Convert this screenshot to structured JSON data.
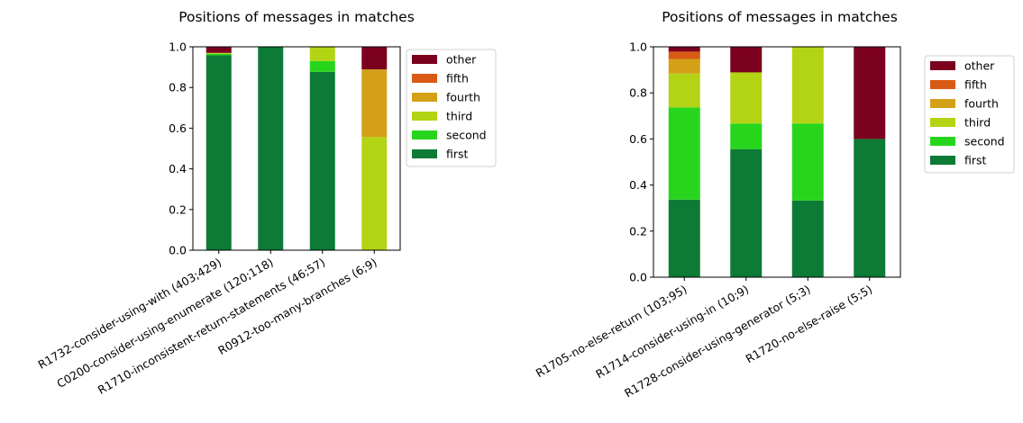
{
  "chart_data": [
    {
      "type": "bar",
      "stacked": true,
      "title": "Positions of messages in matches",
      "xlabel": "",
      "ylabel": "",
      "ylim": [
        0,
        1
      ],
      "yticks": [
        "0.0",
        "0.2",
        "0.4",
        "0.6",
        "0.8",
        "1.0"
      ],
      "legend_position": "outside-right",
      "categories": [
        "R1732-consider-using-with (403;429)",
        "C0200-consider-using-enumerate (120;118)",
        "R1710-inconsistent-return-statements (46;57)",
        "R0912-too-many-branches (6;9)"
      ],
      "series": [
        {
          "name": "first",
          "color": "#0d7a35",
          "values": [
            0.958,
            1.0,
            0.877,
            0.0
          ]
        },
        {
          "name": "second",
          "color": "#27d61c",
          "values": [
            0.007,
            0.0,
            0.053,
            0.0
          ]
        },
        {
          "name": "third",
          "color": "#b3d414",
          "values": [
            0.005,
            0.0,
            0.07,
            0.556
          ]
        },
        {
          "name": "fourth",
          "color": "#d4a017",
          "values": [
            0.0,
            0.0,
            0.0,
            0.333
          ]
        },
        {
          "name": "fifth",
          "color": "#d95a14",
          "values": [
            0.0,
            0.0,
            0.0,
            0.0
          ]
        },
        {
          "name": "other",
          "color": "#7a001e",
          "values": [
            0.03,
            0.0,
            0.0,
            0.111
          ]
        }
      ]
    },
    {
      "type": "bar",
      "stacked": true,
      "title": "Positions of messages in matches",
      "xlabel": "",
      "ylabel": "",
      "ylim": [
        0,
        1
      ],
      "yticks": [
        "0.0",
        "0.2",
        "0.4",
        "0.6",
        "0.8",
        "1.0"
      ],
      "legend_position": "outside-right",
      "categories": [
        "R1705-no-else-return (103;95)",
        "R1714-consider-using-in (10;9)",
        "R1728-consider-using-generator (5;3)",
        "R1720-no-else-raise (5;5)"
      ],
      "series": [
        {
          "name": "first",
          "color": "#0d7a35",
          "values": [
            0.337,
            0.556,
            0.333,
            0.6
          ]
        },
        {
          "name": "second",
          "color": "#27d61c",
          "values": [
            0.4,
            0.111,
            0.334,
            0.0
          ]
        },
        {
          "name": "third",
          "color": "#b3d414",
          "values": [
            0.147,
            0.222,
            0.333,
            0.0
          ]
        },
        {
          "name": "fourth",
          "color": "#d4a017",
          "values": [
            0.063,
            0.0,
            0.0,
            0.0
          ]
        },
        {
          "name": "fifth",
          "color": "#d95a14",
          "values": [
            0.032,
            0.0,
            0.0,
            0.0
          ]
        },
        {
          "name": "other",
          "color": "#7a001e",
          "values": [
            0.021,
            0.111,
            0.0,
            0.4
          ]
        }
      ]
    }
  ]
}
